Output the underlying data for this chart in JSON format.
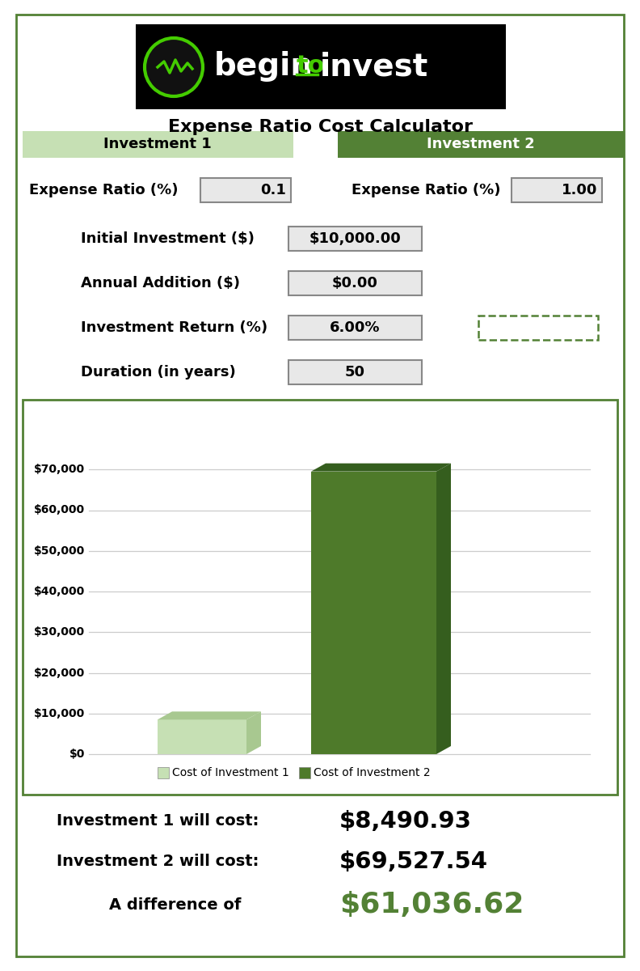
{
  "title": "Expense Ratio Cost Calculator",
  "inv1_label": "Investment 1",
  "inv2_label": "Investment 2",
  "inv1_header_color": "#c6e0b4",
  "inv2_header_color": "#538135",
  "inv1_header_text_color": "#000000",
  "inv2_header_text_color": "#ffffff",
  "expense_ratio_label": "Expense Ratio (%)",
  "expense_ratio_1": "0.1",
  "expense_ratio_2": "1.00",
  "initial_investment_label": "Initial Investment ($)",
  "initial_investment_value": "$10,000.00",
  "annual_addition_label": "Annual Addition ($)",
  "annual_addition_value": "$0.00",
  "investment_return_label": "Investment Return (%)",
  "investment_return_value": "6.00%",
  "duration_label": "Duration (in years)",
  "duration_value": "50",
  "bar_value_1": 8490.93,
  "bar_value_2": 69527.54,
  "bar_color_1": "#c6e0b4",
  "bar_color_2": "#4e7a2a",
  "bar_color_1_dark": "#a8c890",
  "bar_color_2_dark": "#355e1e",
  "legend_label_1": "Cost of Investment 1",
  "legend_label_2": "Cost of Investment 2",
  "chart_border_color": "#538135",
  "ytick_labels": [
    "$0",
    "$10,000",
    "$20,000",
    "$30,000",
    "$40,000",
    "$50,000",
    "$60,000",
    "$70,000"
  ],
  "ytick_values": [
    0,
    10000,
    20000,
    30000,
    40000,
    50000,
    60000,
    70000
  ],
  "cost1_label": "Investment 1 will cost:",
  "cost1_value": "$8,490.93",
  "cost2_label": "Investment 2 will cost:",
  "cost2_value": "$69,527.54",
  "diff_label": "A difference of",
  "diff_value": "$61,036.62",
  "diff_color": "#538135",
  "bg_color": "#ffffff",
  "outer_border_color": "#538135",
  "grid_color": "#cccccc",
  "dashed_border_color": "#538135"
}
